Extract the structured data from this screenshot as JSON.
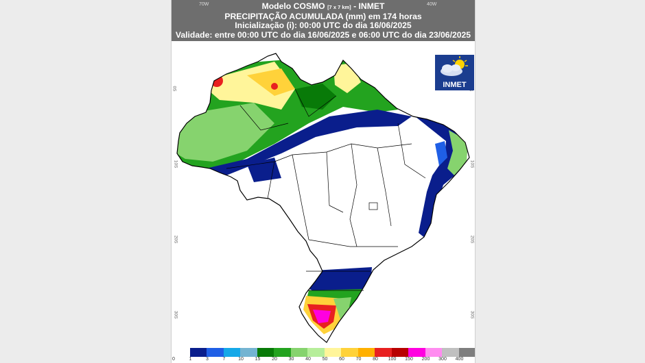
{
  "header": {
    "line1_a": "Modelo COSMO",
    "line1_grid": "[7 x 7 km]",
    "line1_b": "- INMET",
    "line2": "PRECIPITAÇÃO ACUMULADA (mm) em 174 horas",
    "line3": "Inicialização (i): 00:00 UTC do dia 16/06/2025",
    "line4": "Validade: entre 00:00 UTC do dia 16/06/2025 e 06:00 UTC do dia 23/06/2025"
  },
  "axes": {
    "lon_ticks": [
      "70W",
      "40W"
    ],
    "lat_ticks": [
      "0S",
      "10S",
      "20S",
      "30S"
    ]
  },
  "logo": {
    "text": "INMET",
    "icon": "sun-cloud-icon"
  },
  "legend": {
    "labels": [
      "0",
      "1",
      "3",
      "7",
      "10",
      "15",
      "20",
      "30",
      "40",
      "50",
      "60",
      "70",
      "80",
      "100",
      "150",
      "200",
      "300",
      "400"
    ],
    "colors": [
      "#ffffff",
      "#0a1e8c",
      "#1f5fe6",
      "#15a8e8",
      "#74b4d2",
      "#087a08",
      "#23a31f",
      "#86d36e",
      "#b6ee9a",
      "#fff59a",
      "#ffd23a",
      "#ffb000",
      "#e82020",
      "#b80000",
      "#ff00e0",
      "#ff8cf0",
      "#c0c0c0",
      "#7e7e7e"
    ]
  },
  "colors": {
    "header_bg": "#6e6e6e",
    "background": "#ececec"
  }
}
